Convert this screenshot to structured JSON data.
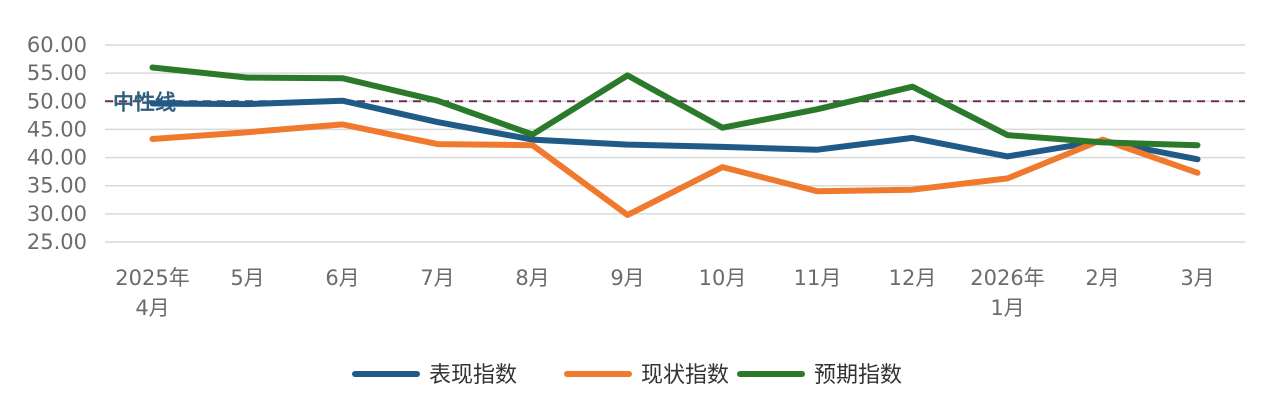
{
  "chart_data": {
    "type": "line",
    "title": "",
    "xlabel": "",
    "ylabel": "",
    "ylim": [
      25,
      60
    ],
    "yticks": [
      "60.00",
      "55.00",
      "50.00",
      "45.00",
      "40.00",
      "35.00",
      "30.00",
      "25.00"
    ],
    "grid": true,
    "legend_position": "bottom",
    "categories": [
      [
        "2025年",
        "4月"
      ],
      [
        "5月"
      ],
      [
        "6月"
      ],
      [
        "7月"
      ],
      [
        "8月"
      ],
      [
        "9月"
      ],
      [
        "10月"
      ],
      [
        "11月"
      ],
      [
        "12月"
      ],
      [
        "2026年",
        "1月"
      ],
      [
        "2月"
      ],
      [
        "3月"
      ]
    ],
    "series": [
      {
        "name": "表现指数",
        "color": "#1f5b86",
        "values": [
          49.6,
          49.5,
          50.1,
          46.3,
          43.2,
          42.3,
          41.9,
          41.4,
          43.5,
          40.2,
          43.0,
          39.7
        ]
      },
      {
        "name": "现状指数",
        "color": "#ef7a2e",
        "values": [
          43.3,
          44.5,
          45.9,
          42.4,
          42.2,
          29.8,
          38.3,
          34.0,
          34.3,
          36.3,
          43.2,
          37.3
        ]
      },
      {
        "name": "预期指数",
        "color": "#2b7a2b",
        "values": [
          56.0,
          54.2,
          54.1,
          50.1,
          44.1,
          54.6,
          45.3,
          48.6,
          52.6,
          44.0,
          42.7,
          42.2
        ]
      }
    ],
    "reference_line": {
      "label": "中性线",
      "value": 50,
      "color": "#6b2d5c"
    }
  }
}
